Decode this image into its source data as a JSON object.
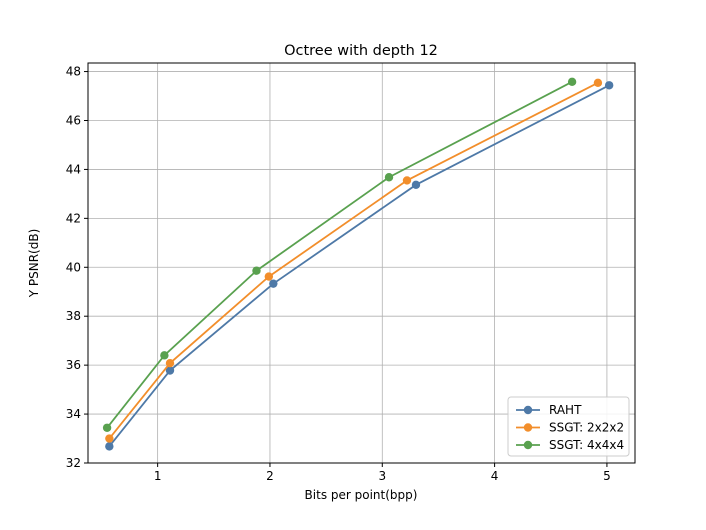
{
  "chart_data": {
    "type": "line",
    "title": "Octree with depth 12",
    "xlabel": "Bits per point(bpp)",
    "ylabel": "Y PSNR(dB)",
    "xlim": [
      0.38,
      5.25
    ],
    "ylim": [
      32,
      48.35
    ],
    "xticks": [
      1,
      2,
      3,
      4,
      5
    ],
    "yticks": [
      32,
      34,
      36,
      38,
      40,
      42,
      44,
      46,
      48
    ],
    "grid": true,
    "legend_position": "lower right",
    "series": [
      {
        "name": "RAHT",
        "color": "#4e79a7",
        "x": [
          0.57,
          1.11,
          2.03,
          3.3,
          5.02
        ],
        "y": [
          32.68,
          35.78,
          39.33,
          43.37,
          47.44
        ]
      },
      {
        "name": "SSGT: 2x2x2",
        "color": "#f28e2b",
        "x": [
          0.57,
          1.11,
          1.99,
          3.22,
          4.92
        ],
        "y": [
          33.0,
          36.08,
          39.62,
          43.55,
          47.54
        ]
      },
      {
        "name": "SSGT: 4x4x4",
        "color": "#59a14f",
        "x": [
          0.55,
          1.06,
          1.88,
          3.06,
          4.69
        ],
        "y": [
          33.44,
          36.4,
          39.86,
          43.68,
          47.58
        ]
      }
    ]
  }
}
